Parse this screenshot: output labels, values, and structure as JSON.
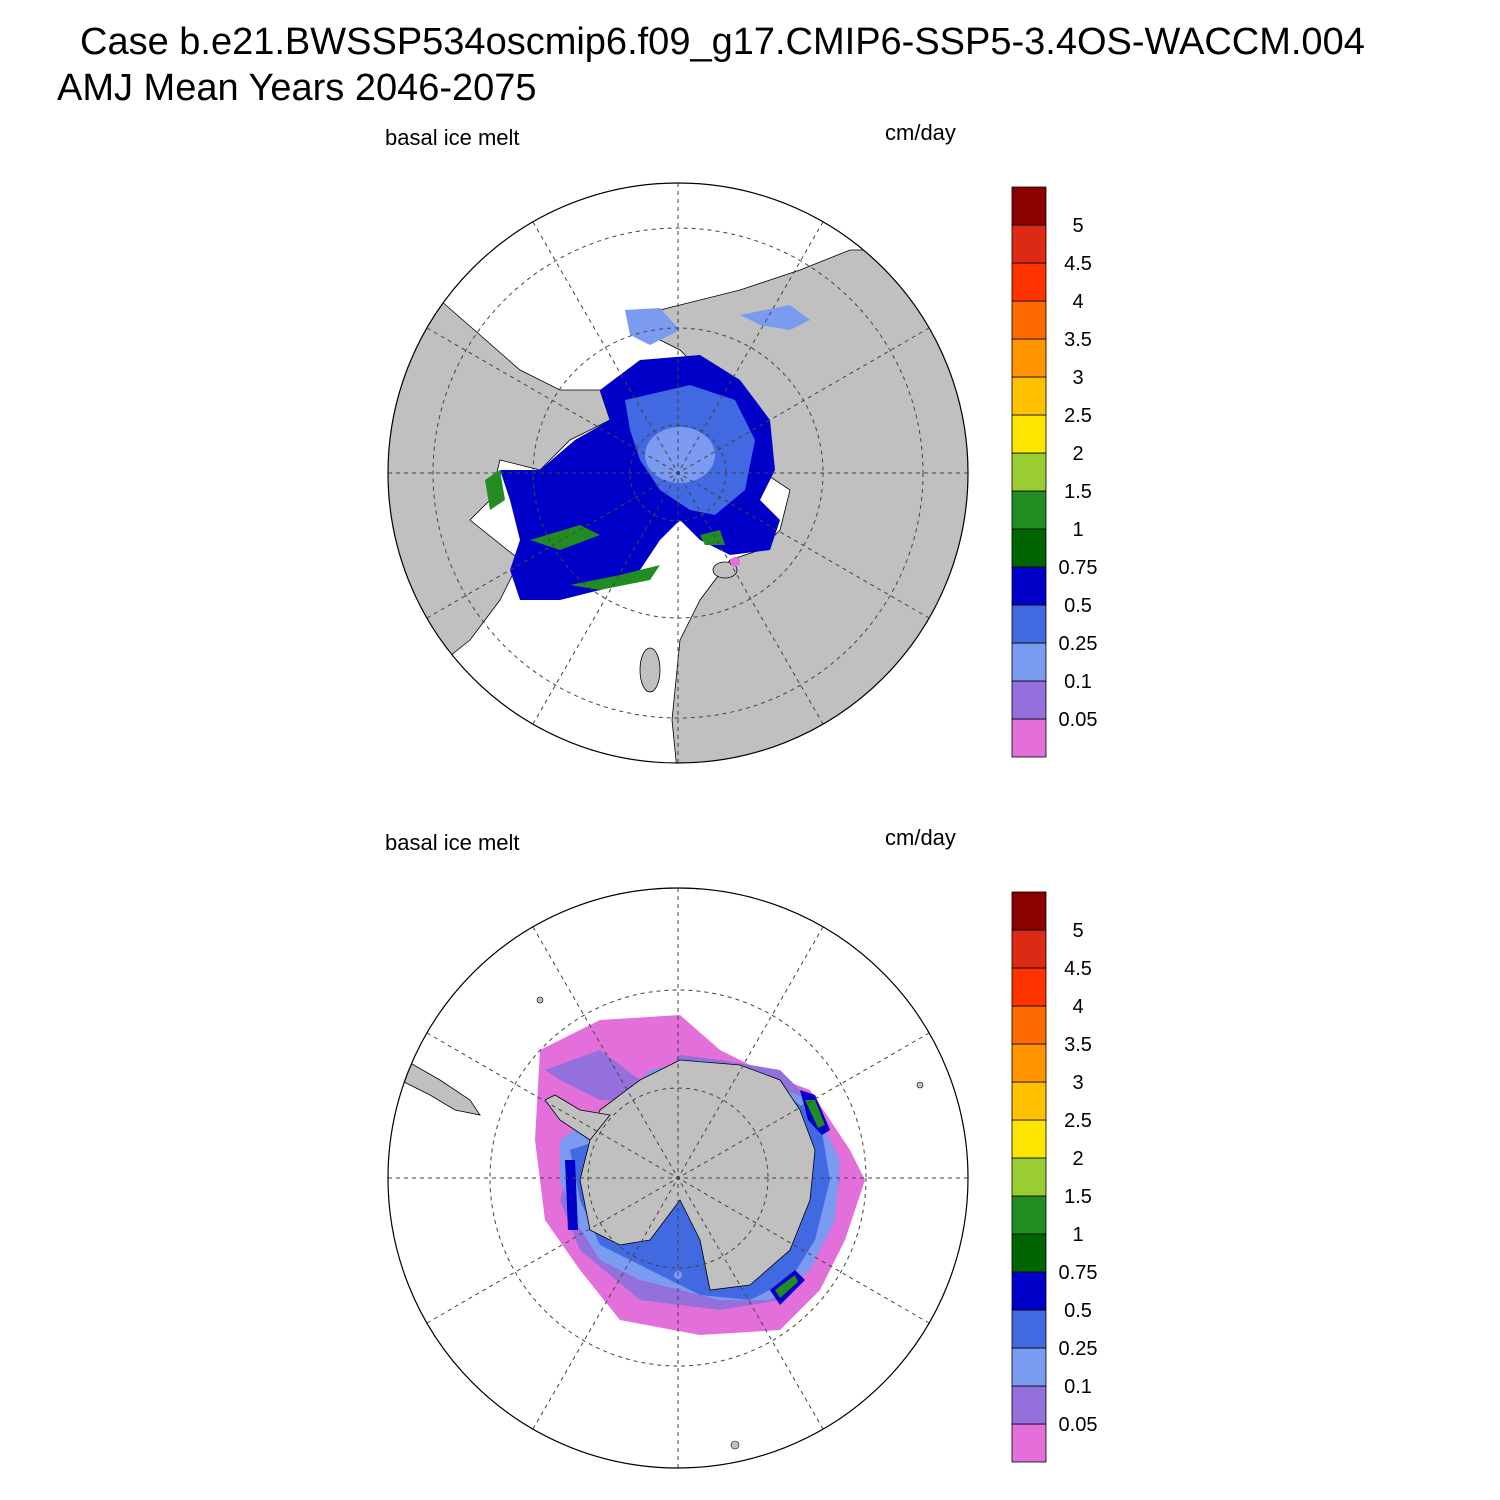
{
  "header": {
    "title_line1": "Case b.e21.BWSSP534oscmip6.f09_g17.CMIP6-SSP5-3.4OS-WACCM.004",
    "title_line2": "AMJ Mean   Years 2046-2075"
  },
  "panels": [
    {
      "hemisphere": "north",
      "variable_label": "basal ice melt",
      "units_label": "cm/day"
    },
    {
      "hemisphere": "south",
      "variable_label": "basal ice melt",
      "units_label": "cm/day"
    }
  ],
  "colorbar": {
    "levels": [
      "0.05",
      "0.1",
      "0.25",
      "0.5",
      "0.75",
      "1",
      "1.5",
      "2",
      "2.5",
      "3",
      "3.5",
      "4",
      "4.5",
      "5"
    ],
    "colors": [
      "#e36fdb",
      "#9370db",
      "#7b9bf0",
      "#4169e1",
      "#0000c8",
      "#006400",
      "#228b22",
      "#9acd32",
      "#ffe600",
      "#ffc000",
      "#ff9400",
      "#ff6a00",
      "#ff3300",
      "#dc2a14",
      "#8b0000"
    ]
  },
  "map_colors": {
    "land": "#c0c0c0",
    "ocean": "#ffffff"
  }
}
